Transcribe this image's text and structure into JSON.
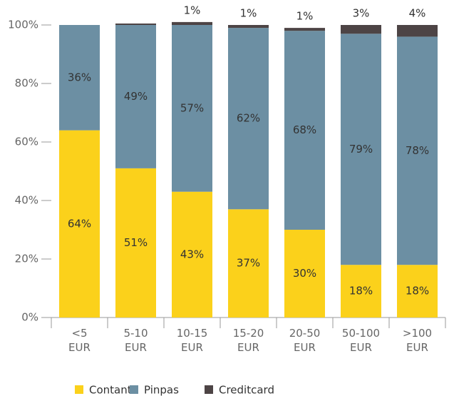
{
  "chart_data": {
    "type": "stacked_bar",
    "categories": [
      [
        "<5",
        "EUR"
      ],
      [
        "5-10",
        "EUR"
      ],
      [
        "10-15",
        "EUR"
      ],
      [
        "15-20",
        "EUR"
      ],
      [
        "20-50",
        "EUR"
      ],
      [
        "50-100",
        "EUR"
      ],
      [
        ">100",
        "EUR"
      ]
    ],
    "series": [
      {
        "name": "Contant",
        "color": "#fbd11b",
        "values": [
          64,
          51,
          43,
          37,
          30,
          18,
          18
        ],
        "value_labels": [
          "64%",
          "51%",
          "43%",
          "37%",
          "30%",
          "18%",
          "18%"
        ]
      },
      {
        "name": "Pinpas",
        "color": "#6c8fa3",
        "values": [
          36,
          49,
          57,
          62,
          68,
          79,
          78
        ],
        "value_labels": [
          "36%",
          "49%",
          "57%",
          "62%",
          "68%",
          "79%",
          "78%"
        ]
      },
      {
        "name": "Creditcard",
        "color": "#4d4445",
        "values": [
          0,
          0.5,
          1,
          1,
          1,
          3,
          4
        ],
        "value_labels": [
          null,
          null,
          "1%",
          "1%",
          "1%",
          "3%",
          "4%"
        ]
      }
    ],
    "ylim": [
      0,
      100
    ],
    "yticks": [
      {
        "value": 0,
        "label": "0%"
      },
      {
        "value": 20,
        "label": "20%"
      },
      {
        "value": 40,
        "label": "40%"
      },
      {
        "value": 60,
        "label": "60%"
      },
      {
        "value": 80,
        "label": "80%"
      },
      {
        "value": 100,
        "label": "100%"
      }
    ],
    "legend": "bottom"
  }
}
